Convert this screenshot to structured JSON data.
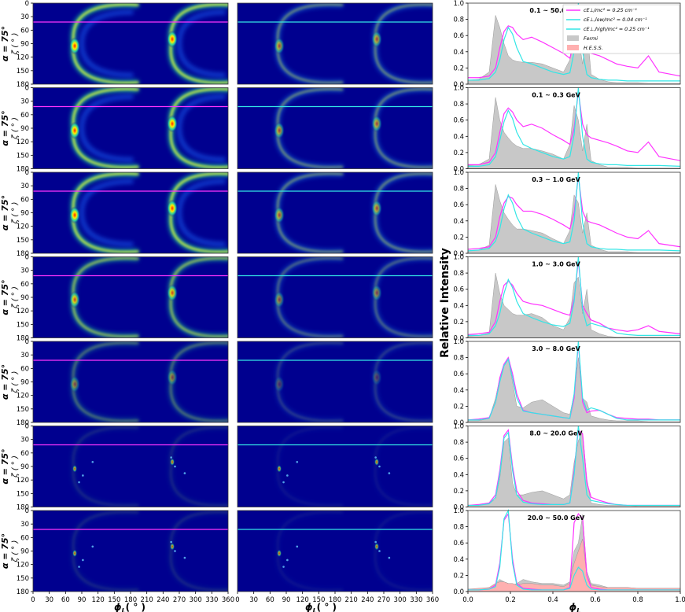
{
  "figure": {
    "left_column_xlabel": "ϕ",
    "left_column_xlabel_sub": "L",
    "left_column_xlabel_unit": "( ° )",
    "right_column_xlabel": "ϕ",
    "right_column_xlabel_sub": "L",
    "right_ylabel": "Relative Intensity",
    "row_ylabel_line1": "α = 75°",
    "row_ylabel_line2": "ζ ( ° )",
    "map_xticks": [
      "0",
      "30",
      "60",
      "90",
      "120",
      "150",
      "180",
      "210",
      "240",
      "270",
      "300",
      "330",
      "360"
    ],
    "map_yticks": [
      "0",
      "30",
      "60",
      "90",
      "120",
      "150",
      "180"
    ],
    "profile_xticks": [
      "0.0",
      "0.2",
      "0.4",
      "0.6",
      "0.8",
      "1.0"
    ],
    "profile_yticks": [
      "0.0",
      "0.2",
      "0.4",
      "0.6",
      "0.8",
      "1.0"
    ],
    "legend": [
      {
        "label": "cE⊥/mc² = 0.25 cm⁻¹",
        "color": "#ff33ff",
        "kind": "line"
      },
      {
        "label": "cE⊥,low/mc² = 0.04 cm⁻¹",
        "color": "#33e6e6",
        "kind": "line"
      },
      {
        "label": "cE⊥,high/mc² = 0.25 cm⁻¹",
        "color": "#33e6e6",
        "kind": "line"
      },
      {
        "label": "Fermi",
        "color": "#c8c8c8",
        "kind": "box"
      },
      {
        "label": "H.E.S.S.",
        "color": "#ffb0b0",
        "kind": "box"
      }
    ],
    "colors": {
      "map_bg": "#00008f",
      "magenta": "#ff33ff",
      "cyan": "#33e6e6",
      "fermi": "#c8c8c8",
      "hess": "#ffb0b0"
    }
  },
  "chart_data": {
    "type": "line",
    "ranges": [
      "0.1 ~ 50.0 GeV",
      "0.1 ~ 0.3  GeV",
      "0.3 ~ 1.0  GeV",
      "1.0 ~ 3.0  GeV",
      "3.0 ~ 8.0  GeV",
      "8.0 ~ 20.0 GeV",
      "20.0 ~ 50.0 GeV"
    ],
    "map_xlim": [
      0,
      360
    ],
    "map_ylim": [
      180,
      0
    ],
    "cut_zeta": 42,
    "profile_xlim": [
      0.0,
      1.0
    ],
    "profile_ylim": [
      0.0,
      1.0
    ],
    "x": [
      0.0,
      0.05,
      0.1,
      0.13,
      0.15,
      0.17,
      0.19,
      0.21,
      0.23,
      0.26,
      0.3,
      0.35,
      0.4,
      0.45,
      0.48,
      0.5,
      0.52,
      0.54,
      0.56,
      0.58,
      0.62,
      0.66,
      0.7,
      0.75,
      0.8,
      0.85,
      0.9,
      1.0
    ],
    "panels": [
      {
        "magenta": [
          0.08,
          0.08,
          0.1,
          0.2,
          0.45,
          0.65,
          0.72,
          0.7,
          0.62,
          0.55,
          0.58,
          0.52,
          0.45,
          0.38,
          0.32,
          0.52,
          0.95,
          0.58,
          0.42,
          0.38,
          0.35,
          0.3,
          0.25,
          0.22,
          0.2,
          0.35,
          0.15,
          0.1
        ],
        "cyan": [
          0.05,
          0.05,
          0.07,
          0.15,
          0.3,
          0.55,
          0.7,
          0.62,
          0.45,
          0.28,
          0.25,
          0.2,
          0.15,
          0.12,
          0.14,
          0.4,
          1.0,
          0.4,
          0.12,
          0.08,
          0.06,
          0.05,
          0.05,
          0.04,
          0.04,
          0.04,
          0.04,
          0.04
        ],
        "fermi": [
          0.05,
          0.06,
          0.15,
          0.85,
          0.7,
          0.5,
          0.35,
          0.3,
          0.28,
          0.27,
          0.27,
          0.25,
          0.2,
          0.15,
          0.3,
          0.75,
          0.6,
          0.25,
          0.72,
          0.12,
          0.06,
          0.03,
          0.02,
          0.02,
          0.02,
          0.01,
          0.01,
          0.01
        ]
      },
      {
        "magenta": [
          0.05,
          0.05,
          0.08,
          0.2,
          0.45,
          0.68,
          0.75,
          0.7,
          0.6,
          0.52,
          0.55,
          0.5,
          0.42,
          0.35,
          0.3,
          0.5,
          0.95,
          0.55,
          0.42,
          0.38,
          0.35,
          0.32,
          0.28,
          0.22,
          0.2,
          0.33,
          0.15,
          0.1
        ],
        "cyan": [
          0.03,
          0.03,
          0.05,
          0.15,
          0.35,
          0.58,
          0.72,
          0.62,
          0.45,
          0.3,
          0.25,
          0.2,
          0.15,
          0.12,
          0.15,
          0.42,
          1.0,
          0.4,
          0.12,
          0.08,
          0.06,
          0.05,
          0.05,
          0.04,
          0.04,
          0.04,
          0.04,
          0.03
        ],
        "fermi": [
          0.04,
          0.05,
          0.12,
          0.88,
          0.6,
          0.45,
          0.38,
          0.32,
          0.28,
          0.25,
          0.25,
          0.22,
          0.18,
          0.12,
          0.3,
          0.78,
          0.6,
          0.22,
          0.55,
          0.1,
          0.05,
          0.02,
          0.02,
          0.02,
          0.01,
          0.01,
          0.01,
          0.01
        ]
      },
      {
        "magenta": [
          0.05,
          0.06,
          0.08,
          0.2,
          0.45,
          0.62,
          0.7,
          0.68,
          0.6,
          0.52,
          0.52,
          0.48,
          0.42,
          0.35,
          0.3,
          0.5,
          0.95,
          0.52,
          0.4,
          0.38,
          0.35,
          0.3,
          0.25,
          0.2,
          0.18,
          0.28,
          0.12,
          0.08
        ],
        "cyan": [
          0.03,
          0.04,
          0.06,
          0.15,
          0.3,
          0.55,
          0.72,
          0.62,
          0.45,
          0.3,
          0.25,
          0.2,
          0.15,
          0.12,
          0.14,
          0.4,
          1.0,
          0.38,
          0.12,
          0.08,
          0.06,
          0.05,
          0.05,
          0.04,
          0.04,
          0.04,
          0.04,
          0.03
        ],
        "fermi": [
          0.03,
          0.04,
          0.1,
          0.85,
          0.65,
          0.5,
          0.42,
          0.35,
          0.3,
          0.3,
          0.28,
          0.25,
          0.18,
          0.12,
          0.28,
          0.72,
          0.62,
          0.25,
          0.5,
          0.1,
          0.05,
          0.02,
          0.02,
          0.02,
          0.01,
          0.01,
          0.01,
          0.01
        ]
      },
      {
        "magenta": [
          0.04,
          0.05,
          0.07,
          0.2,
          0.45,
          0.65,
          0.7,
          0.65,
          0.55,
          0.45,
          0.42,
          0.4,
          0.35,
          0.3,
          0.28,
          0.48,
          0.95,
          0.4,
          0.3,
          0.22,
          0.18,
          0.12,
          0.1,
          0.08,
          0.1,
          0.15,
          0.08,
          0.05
        ],
        "cyan": [
          0.03,
          0.03,
          0.05,
          0.15,
          0.3,
          0.55,
          0.72,
          0.62,
          0.45,
          0.3,
          0.25,
          0.2,
          0.16,
          0.14,
          0.18,
          0.45,
          1.0,
          0.35,
          0.15,
          0.18,
          0.15,
          0.12,
          0.06,
          0.04,
          0.03,
          0.03,
          0.03,
          0.03
        ],
        "fermi": [
          0.02,
          0.03,
          0.06,
          0.8,
          0.55,
          0.4,
          0.35,
          0.3,
          0.28,
          0.28,
          0.3,
          0.25,
          0.15,
          0.1,
          0.25,
          0.68,
          0.75,
          0.3,
          0.6,
          0.1,
          0.05,
          0.02,
          0.01,
          0.01,
          0.01,
          0.01,
          0.01,
          0.01
        ]
      },
      {
        "magenta": [
          0.03,
          0.04,
          0.06,
          0.25,
          0.55,
          0.72,
          0.8,
          0.6,
          0.35,
          0.15,
          0.12,
          0.1,
          0.08,
          0.06,
          0.05,
          0.3,
          0.98,
          0.25,
          0.12,
          0.14,
          0.15,
          0.1,
          0.06,
          0.05,
          0.04,
          0.04,
          0.03,
          0.03
        ],
        "cyan": [
          0.03,
          0.03,
          0.05,
          0.25,
          0.5,
          0.7,
          0.78,
          0.55,
          0.3,
          0.14,
          0.12,
          0.1,
          0.08,
          0.06,
          0.05,
          0.35,
          1.0,
          0.3,
          0.15,
          0.18,
          0.15,
          0.1,
          0.05,
          0.03,
          0.03,
          0.03,
          0.03,
          0.03
        ],
        "fermi": [
          0.02,
          0.02,
          0.05,
          0.3,
          0.55,
          0.7,
          0.78,
          0.5,
          0.2,
          0.18,
          0.25,
          0.28,
          0.2,
          0.12,
          0.1,
          0.35,
          0.8,
          0.3,
          0.25,
          0.08,
          0.05,
          0.03,
          0.02,
          0.02,
          0.02,
          0.01,
          0.01,
          0.01
        ]
      },
      {
        "magenta": [
          0.02,
          0.03,
          0.05,
          0.15,
          0.45,
          0.88,
          0.95,
          0.5,
          0.2,
          0.08,
          0.05,
          0.04,
          0.03,
          0.03,
          0.05,
          0.45,
          0.95,
          0.9,
          0.3,
          0.12,
          0.08,
          0.05,
          0.03,
          0.02,
          0.02,
          0.02,
          0.02,
          0.02
        ],
        "cyan": [
          0.02,
          0.02,
          0.04,
          0.12,
          0.4,
          0.85,
          0.92,
          0.45,
          0.15,
          0.06,
          0.04,
          0.03,
          0.03,
          0.03,
          0.05,
          0.4,
          1.0,
          0.6,
          0.15,
          0.08,
          0.06,
          0.04,
          0.03,
          0.02,
          0.02,
          0.02,
          0.02,
          0.02
        ],
        "fermi": [
          0.02,
          0.02,
          0.04,
          0.1,
          0.35,
          0.8,
          0.85,
          0.3,
          0.15,
          0.15,
          0.18,
          0.2,
          0.15,
          0.1,
          0.15,
          0.55,
          0.82,
          0.92,
          0.35,
          0.05,
          0.03,
          0.02,
          0.02,
          0.02,
          0.01,
          0.01,
          0.01,
          0.01
        ]
      },
      {
        "magenta": [
          0.02,
          0.02,
          0.03,
          0.08,
          0.35,
          0.88,
          0.96,
          0.4,
          0.1,
          0.04,
          0.03,
          0.02,
          0.02,
          0.02,
          0.05,
          0.85,
          0.96,
          0.9,
          0.2,
          0.05,
          0.03,
          0.02,
          0.02,
          0.02,
          0.02,
          0.02,
          0.02,
          0.02
        ],
        "cyan": [
          0.02,
          0.02,
          0.03,
          0.06,
          0.3,
          0.9,
          1.0,
          0.35,
          0.08,
          0.03,
          0.02,
          0.02,
          0.02,
          0.02,
          0.04,
          0.2,
          0.3,
          0.25,
          0.08,
          0.03,
          0.02,
          0.02,
          0.02,
          0.02,
          0.02,
          0.02,
          0.02,
          0.02
        ],
        "fermi": [
          0.02,
          0.03,
          0.05,
          0.1,
          0.15,
          0.12,
          0.1,
          0.08,
          0.1,
          0.15,
          0.12,
          0.1,
          0.1,
          0.08,
          0.12,
          0.5,
          0.6,
          0.95,
          0.25,
          0.1,
          0.08,
          0.05,
          0.05,
          0.05,
          0.04,
          0.04,
          0.04,
          0.04
        ],
        "hess": [
          0.03,
          0.04,
          0.05,
          0.1,
          0.12,
          0.12,
          0.1,
          0.1,
          0.08,
          0.1,
          0.1,
          0.08,
          0.08,
          0.06,
          0.1,
          0.35,
          0.5,
          0.65,
          0.2,
          0.08,
          0.06,
          0.05,
          0.05,
          0.05,
          0.04,
          0.04,
          0.04,
          0.04
        ]
      }
    ]
  }
}
